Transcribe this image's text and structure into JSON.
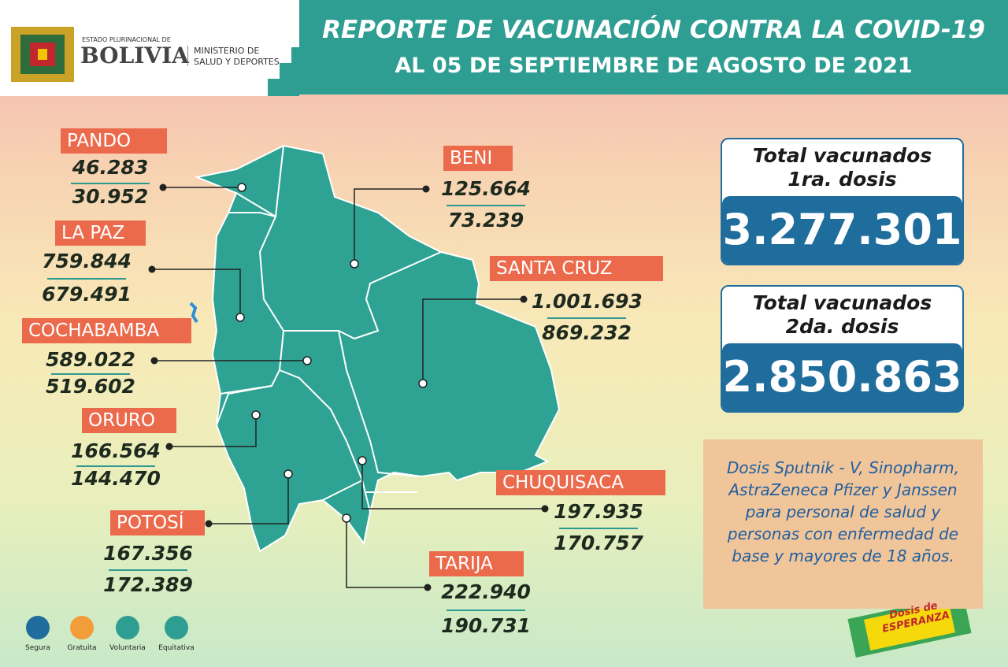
{
  "header": {
    "emblem": [
      "ESTADO PLURINACIONAL DE",
      "BOLIVIA"
    ],
    "ministry": [
      "MINISTERIO DE",
      "SALUD Y DEPORTES"
    ],
    "title": "REPORTE DE VACUNACIÓN CONTRA LA COVID-19",
    "subtitle": "AL 05 DE SEPTIEMBRE DE AGOSTO DE 2021"
  },
  "departments": [
    {
      "name": "PANDO",
      "dose1": "46.283",
      "dose2": "30.952"
    },
    {
      "name": "BENI",
      "dose1": "125.664",
      "dose2": "73.239"
    },
    {
      "name": "LA PAZ",
      "dose1": "759.844",
      "dose2": "679.491"
    },
    {
      "name": "SANTA CRUZ",
      "dose1": "1.001.693",
      "dose2": "869.232"
    },
    {
      "name": "COCHABAMBA",
      "dose1": "589.022",
      "dose2": "519.602"
    },
    {
      "name": "ORURO",
      "dose1": "166.564",
      "dose2": "144.470"
    },
    {
      "name": "CHUQUISACA",
      "dose1": "197.935",
      "dose2": "170.757"
    },
    {
      "name": "POTOSÍ",
      "dose1": "167.356",
      "dose2": "172.389"
    },
    {
      "name": "TARIJA",
      "dose1": "222.940",
      "dose2": "190.731"
    }
  ],
  "totals": [
    {
      "label": [
        "Total vacunados",
        "1ra. dosis"
      ],
      "value": "3.277.301"
    },
    {
      "label": [
        "Total vacunados",
        "2da. dosis"
      ],
      "value": "2.850.863"
    }
  ],
  "note": [
    "Dosis Sputnik - V, Sinopharm,",
    "AstraZeneca Pfizer y Janssen",
    "para personal de salud y",
    "personas con enfermedad de",
    "base y mayores de 18 años."
  ],
  "badges": [
    "Segura",
    "Gratuita",
    "Voluntaria",
    "Equitativa"
  ],
  "campaign": [
    "Dosis de",
    "ESPERANZA"
  ]
}
